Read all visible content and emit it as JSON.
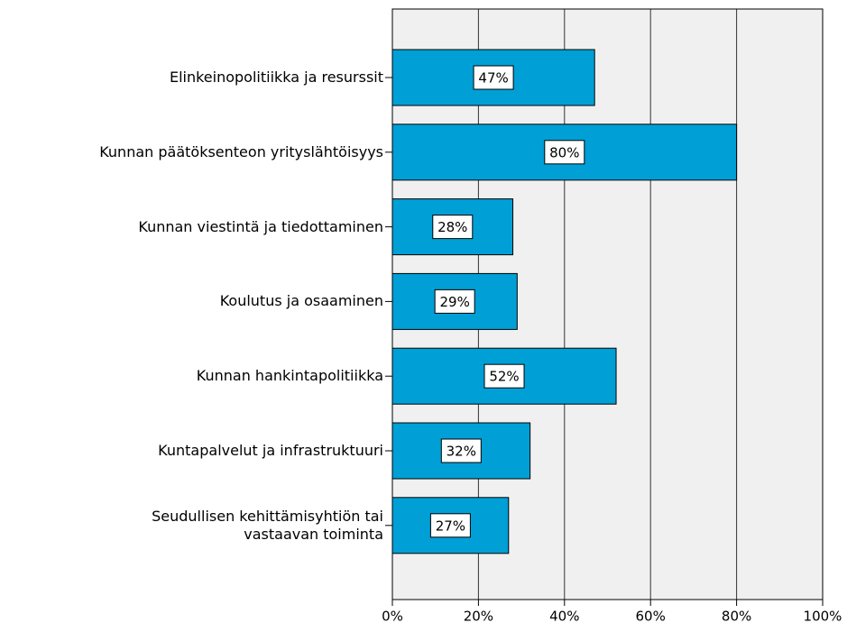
{
  "chart_data": {
    "type": "barh",
    "categories": [
      "Elinkeinopolitiikka ja resurssit",
      "Kunnan päätöksenteon yrityslähtöisyys",
      "Kunnan viestintä ja tiedottaminen",
      "Koulutus ja osaaminen",
      "Kunnan hankintapolitiikka",
      "Kuntapalvelut ja infrastruktuuri",
      "Seudullisen kehittämisyhtiön tai\nvastaavan toiminta"
    ],
    "values": [
      47,
      80,
      28,
      29,
      52,
      32,
      27
    ],
    "value_labels": [
      "47%",
      "80%",
      "28%",
      "29%",
      "52%",
      "32%",
      "27%"
    ],
    "color": "#009fd6",
    "xlim": [
      0,
      100
    ],
    "xticks": [
      {
        "value": 0,
        "label": "0%"
      },
      {
        "value": 20,
        "label": "20%"
      },
      {
        "value": 40,
        "label": "40%"
      },
      {
        "value": 60,
        "label": "60%"
      },
      {
        "value": 80,
        "label": "80%"
      },
      {
        "value": 100,
        "label": "100%"
      }
    ],
    "grid": true
  }
}
